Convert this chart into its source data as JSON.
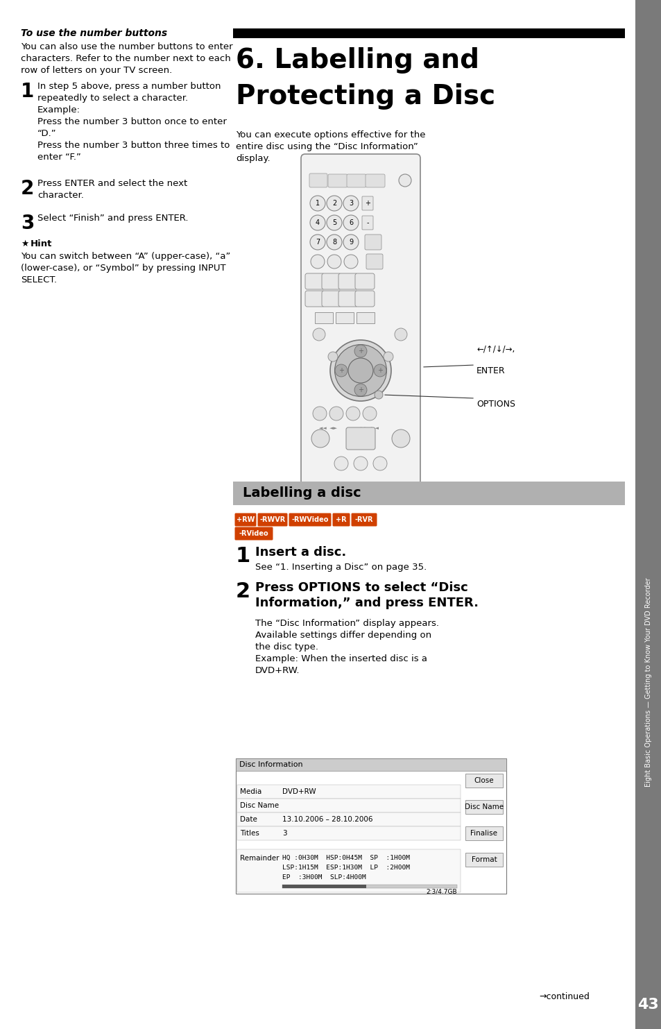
{
  "page_bg": "#ffffff",
  "sidebar_bg": "#7a7a7a",
  "sidebar_text": "Eight Basic Operations — Getting to Know Your DVD Recorder",
  "chapter_bar_color": "#000000",
  "chapter_title_line1": "6. Labelling and",
  "chapter_title_line2": "Protecting a Disc",
  "section_header_bg": "#b0b0b0",
  "section_header_text": "Labelling a disc",
  "page_number": "43",
  "continued_text": "→continued"
}
